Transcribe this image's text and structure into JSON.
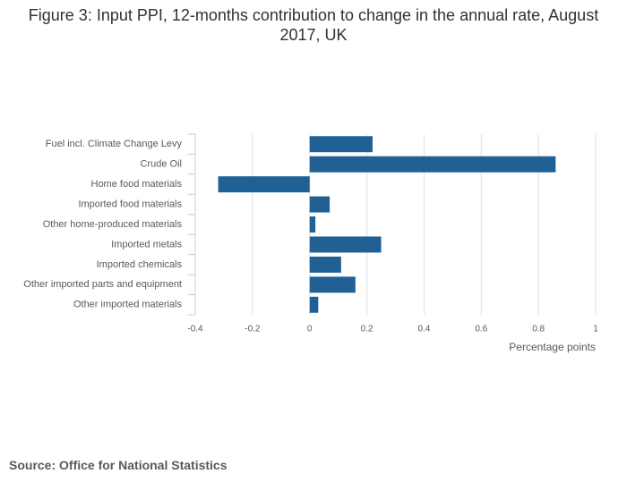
{
  "chart_data": {
    "type": "barh",
    "title": "Figure 3: Input PPI, 12-months contribution to change in the annual rate, August 2017, UK",
    "categories": [
      "Fuel incl. Climate Change Levy",
      "Crude Oil",
      "Home food materials",
      "Imported food materials",
      "Other home-produced materials",
      "Imported metals",
      "Imported chemicals",
      "Other imported parts and equipment",
      "Other imported materials"
    ],
    "values": [
      0.22,
      0.86,
      -0.32,
      0.07,
      0.02,
      0.25,
      0.11,
      0.16,
      0.03
    ],
    "color": "#206095",
    "xlim": [
      -0.4,
      1
    ],
    "xticks": [
      -0.4,
      -0.2,
      0,
      0.2,
      0.4,
      0.6,
      0.8,
      1
    ],
    "xlabel": "Percentage points",
    "grid": true,
    "source": "Source: Office for National Statistics"
  }
}
